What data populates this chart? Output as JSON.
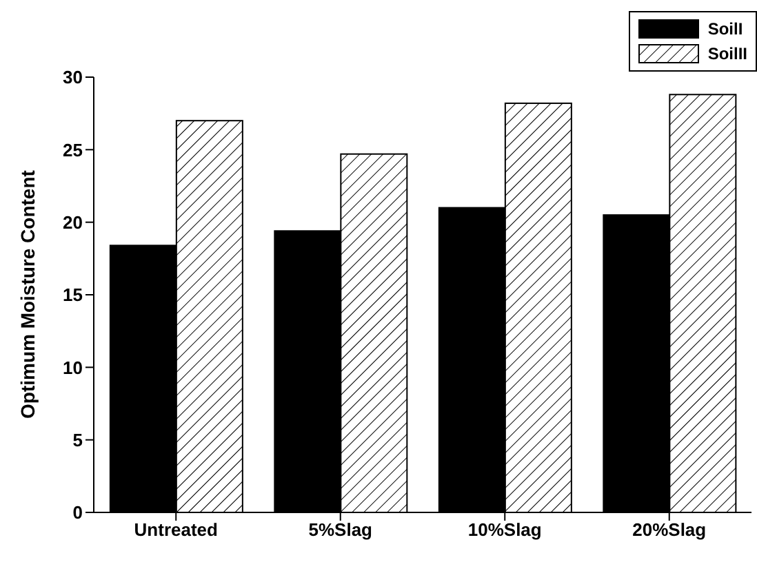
{
  "chart_data": {
    "type": "bar",
    "ylabel": "Optimum Moisture Content",
    "categories": [
      "Untreated",
      "5%Slag",
      "10%Slag",
      "20%Slag"
    ],
    "series": [
      {
        "name": "SoilI",
        "color": "#000000",
        "values": [
          18.4,
          19.4,
          21.0,
          20.5
        ]
      },
      {
        "name": "SoilII",
        "color": "#ffffff",
        "values": [
          27.0,
          24.7,
          28.2,
          28.8
        ]
      }
    ],
    "ylim": [
      0,
      30
    ],
    "yticks": [
      0,
      5,
      10,
      15,
      20,
      25,
      30
    ],
    "grid": false,
    "legend": "top right"
  }
}
